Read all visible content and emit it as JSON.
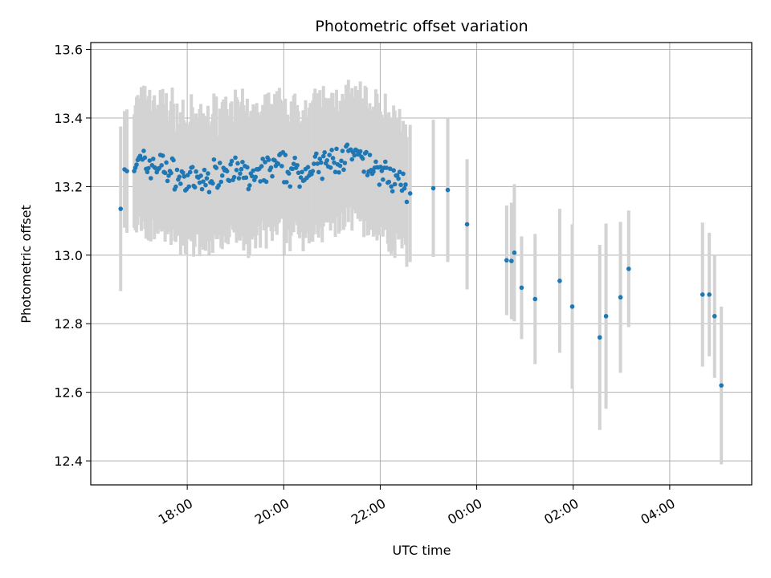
{
  "chart_data": {
    "type": "scatter",
    "title": "Photometric offset variation",
    "xlabel": "UTC time",
    "ylabel": "Photometric offset",
    "x_unit": "hours UTC (values past 24 fall on the next day)",
    "xlim": [
      16.0,
      29.7
    ],
    "ylim": [
      12.33,
      13.62
    ],
    "x_ticks": [
      {
        "value": 18,
        "label": "18:00"
      },
      {
        "value": 20,
        "label": "20:00"
      },
      {
        "value": 22,
        "label": "22:00"
      },
      {
        "value": 24,
        "label": "00:00"
      },
      {
        "value": 26,
        "label": "02:00"
      },
      {
        "value": 28,
        "label": "04:00"
      }
    ],
    "y_ticks": [
      {
        "value": 12.4,
        "label": "12.4"
      },
      {
        "value": 12.6,
        "label": "12.6"
      },
      {
        "value": 12.8,
        "label": "12.8"
      },
      {
        "value": 13.0,
        "label": "13.0"
      },
      {
        "value": 13.2,
        "label": "13.2"
      },
      {
        "value": 13.4,
        "label": "13.4"
      },
      {
        "value": 13.6,
        "label": "13.6"
      }
    ],
    "grid": true,
    "point_color": "#1f77b4",
    "errorbar_color": "#d3d3d3",
    "dense_segment": {
      "x_start": 16.9,
      "x_end": 22.55,
      "count": 230,
      "error": 0.18,
      "trend": [
        [
          16.9,
          13.27
        ],
        [
          17.5,
          13.26
        ],
        [
          17.9,
          13.22
        ],
        [
          18.3,
          13.21
        ],
        [
          18.8,
          13.26
        ],
        [
          19.3,
          13.22
        ],
        [
          19.8,
          13.26
        ],
        [
          20.3,
          13.24
        ],
        [
          20.8,
          13.26
        ],
        [
          21.3,
          13.29
        ],
        [
          21.8,
          13.26
        ],
        [
          22.3,
          13.22
        ],
        [
          22.55,
          13.19
        ]
      ]
    },
    "points": [
      {
        "x": 16.62,
        "y": 13.135,
        "err": 0.24
      },
      {
        "x": 16.7,
        "y": 13.25,
        "err": 0.17
      },
      {
        "x": 16.75,
        "y": 13.245,
        "err": 0.18
      },
      {
        "x": 22.62,
        "y": 13.18,
        "err": 0.2
      },
      {
        "x": 23.1,
        "y": 13.195,
        "err": 0.2
      },
      {
        "x": 23.4,
        "y": 13.19,
        "err": 0.21
      },
      {
        "x": 23.8,
        "y": 13.09,
        "err": 0.19
      },
      {
        "x": 24.62,
        "y": 12.985,
        "err": 0.16
      },
      {
        "x": 24.72,
        "y": 12.983,
        "err": 0.17
      },
      {
        "x": 24.78,
        "y": 13.007,
        "err": 0.2
      },
      {
        "x": 24.93,
        "y": 12.905,
        "err": 0.15
      },
      {
        "x": 25.21,
        "y": 12.872,
        "err": 0.19
      },
      {
        "x": 25.72,
        "y": 12.925,
        "err": 0.21
      },
      {
        "x": 25.98,
        "y": 12.85,
        "err": 0.24
      },
      {
        "x": 26.55,
        "y": 12.76,
        "err": 0.27
      },
      {
        "x": 26.68,
        "y": 12.822,
        "err": 0.27
      },
      {
        "x": 26.98,
        "y": 12.877,
        "err": 0.22
      },
      {
        "x": 27.15,
        "y": 12.96,
        "err": 0.17
      },
      {
        "x": 28.68,
        "y": 12.885,
        "err": 0.21
      },
      {
        "x": 28.82,
        "y": 12.885,
        "err": 0.18
      },
      {
        "x": 28.93,
        "y": 12.822,
        "err": 0.18
      },
      {
        "x": 29.07,
        "y": 12.62,
        "err": 0.23
      }
    ]
  }
}
